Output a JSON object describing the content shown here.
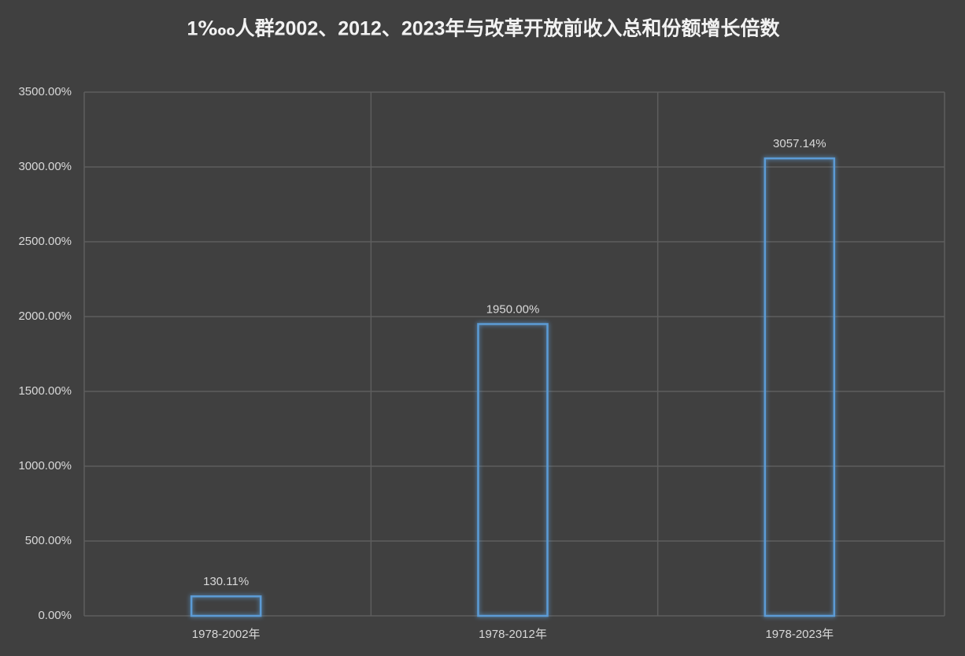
{
  "chart_data": {
    "type": "bar",
    "title": "1‱人群2002、2012、2023年与改革开放前收入总和份额增长倍数",
    "categories": [
      "1978-2002年",
      "1978-2012年",
      "1978-2023年"
    ],
    "values": [
      130.11,
      1950,
      3057.14
    ],
    "value_labels": [
      "130.11%",
      "1950.00%",
      "3057.14%"
    ],
    "color": "#5b9bd5",
    "ylim": [
      0,
      3500
    ],
    "yticks": [
      {
        "value": 0,
        "label": "0.00%"
      },
      {
        "value": 500,
        "label": "500.00%"
      },
      {
        "value": 1000,
        "label": "1000.00%"
      },
      {
        "value": 1500,
        "label": "1500.00%"
      },
      {
        "value": 2000,
        "label": "2000.00%"
      },
      {
        "value": 2500,
        "label": "2500.00%"
      },
      {
        "value": 3000,
        "label": "3000.00%"
      },
      {
        "value": 3500,
        "label": "3500.00%"
      }
    ],
    "grid": true
  }
}
